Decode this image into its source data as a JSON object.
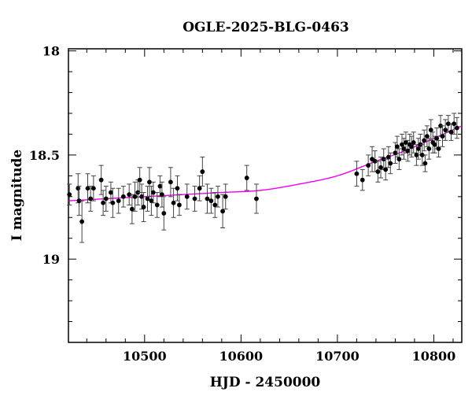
{
  "chart_data": {
    "type": "scatter",
    "title": "OGLE-2025-BLG-0463",
    "xlabel": "HJD - 2450000",
    "ylabel": "I magnitude",
    "xlim": [
      10421,
      10829
    ],
    "ylim": [
      19.4,
      17.99
    ],
    "y_inverted": true,
    "x_ticks": [
      10500,
      10600,
      10700,
      10800
    ],
    "x_tick_labels": [
      "10500",
      "10600",
      "10700",
      "10800"
    ],
    "y_ticks": [
      18,
      18.5,
      19
    ],
    "y_tick_labels": [
      "18",
      "18.5",
      "19"
    ],
    "grid": false,
    "colors": {
      "points": "#000000",
      "model": "#ee00ee",
      "axes": "#000000"
    },
    "series": [
      {
        "kind": "points_with_error_bars",
        "points": [
          {
            "x": 10422,
            "y": 18.69,
            "err": 0.05
          },
          {
            "x": 10431,
            "y": 18.66,
            "err": 0.07
          },
          {
            "x": 10432,
            "y": 18.72,
            "err": 0.07
          },
          {
            "x": 10435,
            "y": 18.82,
            "err": 0.1
          },
          {
            "x": 10441,
            "y": 18.66,
            "err": 0.07
          },
          {
            "x": 10444,
            "y": 18.71,
            "err": 0.06
          },
          {
            "x": 10447,
            "y": 18.66,
            "err": 0.06
          },
          {
            "x": 10455,
            "y": 18.62,
            "err": 0.07
          },
          {
            "x": 10457,
            "y": 18.73,
            "err": 0.06
          },
          {
            "x": 10460,
            "y": 18.71,
            "err": 0.06
          },
          {
            "x": 10465,
            "y": 18.68,
            "err": 0.05
          },
          {
            "x": 10467,
            "y": 18.73,
            "err": 0.07
          },
          {
            "x": 10473,
            "y": 18.72,
            "err": 0.06
          },
          {
            "x": 10478,
            "y": 18.7,
            "err": 0.05
          },
          {
            "x": 10484,
            "y": 18.69,
            "err": 0.05
          },
          {
            "x": 10487,
            "y": 18.76,
            "err": 0.07
          },
          {
            "x": 10490,
            "y": 18.7,
            "err": 0.07
          },
          {
            "x": 10493,
            "y": 18.68,
            "err": 0.06
          },
          {
            "x": 10495,
            "y": 18.62,
            "err": 0.06
          },
          {
            "x": 10497,
            "y": 18.7,
            "err": 0.06
          },
          {
            "x": 10499,
            "y": 18.75,
            "err": 0.07
          },
          {
            "x": 10503,
            "y": 18.71,
            "err": 0.06
          },
          {
            "x": 10505,
            "y": 18.63,
            "err": 0.07
          },
          {
            "x": 10507,
            "y": 18.72,
            "err": 0.07
          },
          {
            "x": 10509,
            "y": 18.68,
            "err": 0.05
          },
          {
            "x": 10513,
            "y": 18.74,
            "err": 0.06
          },
          {
            "x": 10516,
            "y": 18.65,
            "err": 0.05
          },
          {
            "x": 10518,
            "y": 18.69,
            "err": 0.06
          },
          {
            "x": 10520,
            "y": 18.78,
            "err": 0.08
          },
          {
            "x": 10527,
            "y": 18.63,
            "err": 0.07
          },
          {
            "x": 10530,
            "y": 18.73,
            "err": 0.07
          },
          {
            "x": 10534,
            "y": 18.66,
            "err": 0.06
          },
          {
            "x": 10536,
            "y": 18.74,
            "err": 0.05
          },
          {
            "x": 10544,
            "y": 18.7,
            "err": 0.06
          },
          {
            "x": 10552,
            "y": 18.71,
            "err": 0.06
          },
          {
            "x": 10557,
            "y": 18.66,
            "err": 0.06
          },
          {
            "x": 10560,
            "y": 18.58,
            "err": 0.07
          },
          {
            "x": 10565,
            "y": 18.71,
            "err": 0.07
          },
          {
            "x": 10569,
            "y": 18.72,
            "err": 0.06
          },
          {
            "x": 10573,
            "y": 18.74,
            "err": 0.06
          },
          {
            "x": 10576,
            "y": 18.7,
            "err": 0.05
          },
          {
            "x": 10581,
            "y": 18.77,
            "err": 0.08
          },
          {
            "x": 10584,
            "y": 18.7,
            "err": 0.06
          },
          {
            "x": 10606,
            "y": 18.61,
            "err": 0.06
          },
          {
            "x": 10616,
            "y": 18.71,
            "err": 0.07
          },
          {
            "x": 10720,
            "y": 18.59,
            "err": 0.06
          },
          {
            "x": 10726,
            "y": 18.62,
            "err": 0.05
          },
          {
            "x": 10732,
            "y": 18.55,
            "err": 0.05
          },
          {
            "x": 10736,
            "y": 18.52,
            "err": 0.06
          },
          {
            "x": 10739,
            "y": 18.53,
            "err": 0.05
          },
          {
            "x": 10742,
            "y": 18.58,
            "err": 0.05
          },
          {
            "x": 10745,
            "y": 18.56,
            "err": 0.05
          },
          {
            "x": 10748,
            "y": 18.52,
            "err": 0.05
          },
          {
            "x": 10750,
            "y": 18.57,
            "err": 0.05
          },
          {
            "x": 10753,
            "y": 18.51,
            "err": 0.05
          },
          {
            "x": 10755,
            "y": 18.54,
            "err": 0.05
          },
          {
            "x": 10760,
            "y": 18.49,
            "err": 0.05
          },
          {
            "x": 10762,
            "y": 18.46,
            "err": 0.05
          },
          {
            "x": 10764,
            "y": 18.52,
            "err": 0.05
          },
          {
            "x": 10767,
            "y": 18.45,
            "err": 0.05
          },
          {
            "x": 10769,
            "y": 18.47,
            "err": 0.05
          },
          {
            "x": 10771,
            "y": 18.44,
            "err": 0.05
          },
          {
            "x": 10773,
            "y": 18.48,
            "err": 0.05
          },
          {
            "x": 10775,
            "y": 18.45,
            "err": 0.05
          },
          {
            "x": 10777,
            "y": 18.46,
            "err": 0.05
          },
          {
            "x": 10779,
            "y": 18.44,
            "err": 0.05
          },
          {
            "x": 10782,
            "y": 18.5,
            "err": 0.05
          },
          {
            "x": 10784,
            "y": 18.47,
            "err": 0.05
          },
          {
            "x": 10786,
            "y": 18.45,
            "err": 0.05
          },
          {
            "x": 10788,
            "y": 18.5,
            "err": 0.05
          },
          {
            "x": 10790,
            "y": 18.43,
            "err": 0.05
          },
          {
            "x": 10791,
            "y": 18.54,
            "err": 0.04
          },
          {
            "x": 10793,
            "y": 18.41,
            "err": 0.05
          },
          {
            "x": 10795,
            "y": 18.47,
            "err": 0.05
          },
          {
            "x": 10797,
            "y": 18.38,
            "err": 0.05
          },
          {
            "x": 10799,
            "y": 18.44,
            "err": 0.05
          },
          {
            "x": 10801,
            "y": 18.45,
            "err": 0.04
          },
          {
            "x": 10803,
            "y": 18.42,
            "err": 0.05
          },
          {
            "x": 10805,
            "y": 18.47,
            "err": 0.04
          },
          {
            "x": 10807,
            "y": 18.36,
            "err": 0.05
          },
          {
            "x": 10809,
            "y": 18.41,
            "err": 0.05
          },
          {
            "x": 10812,
            "y": 18.38,
            "err": 0.05
          },
          {
            "x": 10815,
            "y": 18.35,
            "err": 0.04
          },
          {
            "x": 10818,
            "y": 18.39,
            "err": 0.04
          },
          {
            "x": 10821,
            "y": 18.35,
            "err": 0.05
          },
          {
            "x": 10824,
            "y": 18.37,
            "err": 0.05
          }
        ]
      },
      {
        "kind": "model_curve",
        "x": [
          10421,
          10460,
          10500,
          10540,
          10580,
          10620,
          10660,
          10700,
          10740,
          10770,
          10800,
          10829
        ],
        "y": [
          18.72,
          18.71,
          18.7,
          18.69,
          18.68,
          18.67,
          18.64,
          18.6,
          18.53,
          18.48,
          18.42,
          18.36
        ]
      }
    ]
  }
}
